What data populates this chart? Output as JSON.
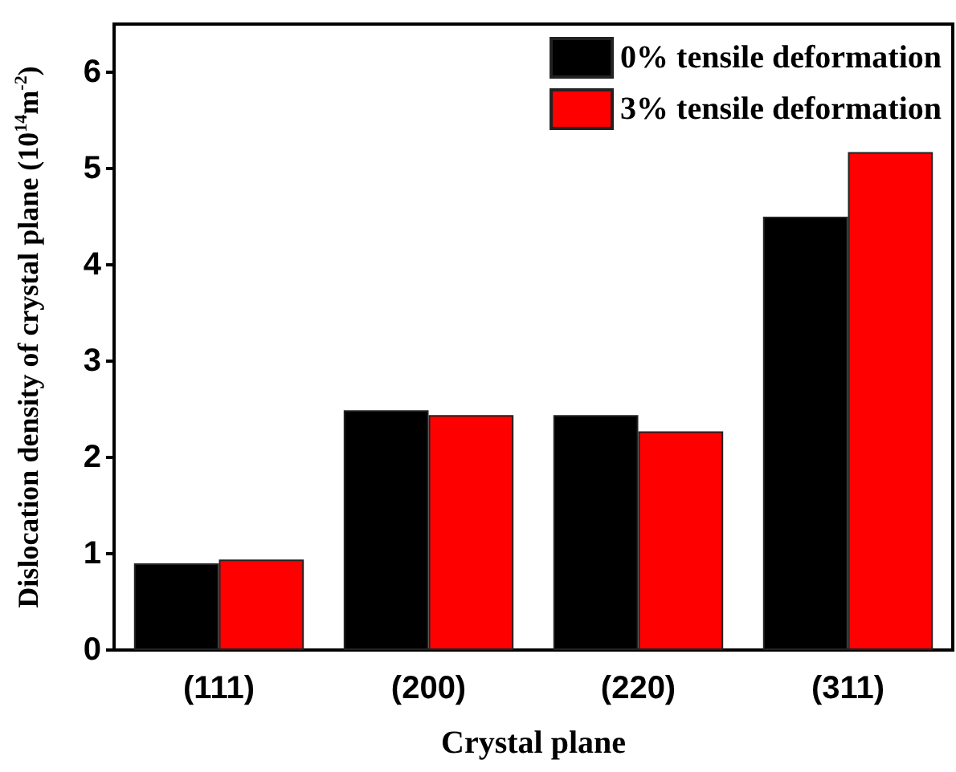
{
  "chart_data": {
    "type": "bar",
    "xlabel": "Crystal plane",
    "ylabel": "Dislocation density of crystal plane (10$^{14}$m$^{-2}$)",
    "categories": [
      "(111)",
      "(200)",
      "(220)",
      "(311)"
    ],
    "series": [
      {
        "name": "0% tensile deformation",
        "color": "#000000",
        "values": [
          0.9,
          2.49,
          2.44,
          4.5
        ]
      },
      {
        "name": "3% tensile deformation",
        "color": "#ff0000",
        "values": [
          0.94,
          2.44,
          2.27,
          5.17
        ]
      }
    ],
    "ylim": [
      0,
      6.5
    ],
    "yticks": [
      0,
      1,
      2,
      3,
      4,
      5,
      6
    ],
    "grid": false,
    "legend": "top right"
  }
}
